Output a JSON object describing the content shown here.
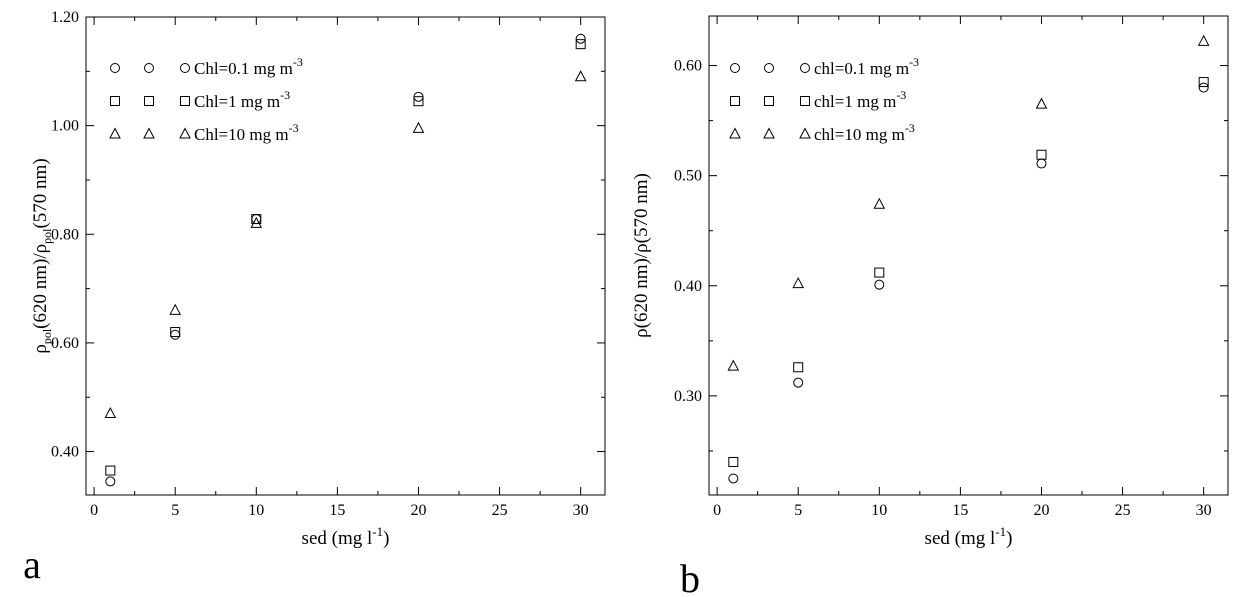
{
  "chart_data": [
    {
      "panel": "a",
      "type": "scatter",
      "xlabel": "sed (mg l",
      "xlabel_sup": "-1",
      "xlabel_end": ")",
      "ylabel_parts": [
        "ρ",
        "pol",
        "(620 nm)/ρ",
        "pol",
        "(570 nm)"
      ],
      "xlim": [
        -0.5,
        31.5
      ],
      "ylim": [
        0.32,
        1.2
      ],
      "x_ticks": [
        0,
        5,
        10,
        15,
        20,
        25,
        30
      ],
      "x_tick_labels": [
        "0",
        "5",
        "10",
        "15",
        "20",
        "25",
        "30"
      ],
      "y_ticks": [
        0.4,
        0.6,
        0.8,
        1.0,
        1.2
      ],
      "y_tick_labels": [
        "0.40",
        "0.60",
        "0.80",
        "1.00",
        "1.20"
      ],
      "legend_position": "top-left",
      "series": [
        {
          "name": "Chl=0.1 mg m",
          "name_sup": "-3",
          "marker": "circle",
          "x": [
            1,
            5,
            10,
            20,
            30
          ],
          "y": [
            0.345,
            0.615,
            0.828,
            1.053,
            1.16
          ]
        },
        {
          "name": "Chl=1 mg m",
          "name_sup": "-3",
          "marker": "square",
          "x": [
            1,
            5,
            10,
            20,
            30
          ],
          "y": [
            0.365,
            0.62,
            0.828,
            1.045,
            1.15
          ]
        },
        {
          "name": "Chl=10 mg m",
          "name_sup": "-3",
          "marker": "triangle",
          "x": [
            1,
            5,
            10,
            20,
            30
          ],
          "y": [
            0.47,
            0.66,
            0.82,
            0.995,
            1.09
          ]
        }
      ]
    },
    {
      "panel": "b",
      "type": "scatter",
      "xlabel": "sed (mg l",
      "xlabel_sup": "-1",
      "xlabel_end": ")",
      "ylabel_parts": [
        "ρ(620 nm)/ρ(570 nm)"
      ],
      "xlim": [
        -0.5,
        31.5
      ],
      "ylim": [
        0.21,
        0.645
      ],
      "x_ticks": [
        0,
        5,
        10,
        15,
        20,
        25,
        30
      ],
      "x_tick_labels": [
        "0",
        "5",
        "10",
        "15",
        "20",
        "25",
        "30"
      ],
      "y_ticks": [
        0.3,
        0.4,
        0.5,
        0.6
      ],
      "y_tick_labels": [
        "0.30",
        "0.40",
        "0.50",
        "0.60"
      ],
      "legend_position": "top-left",
      "series": [
        {
          "name": "chl=0.1 mg m",
          "name_sup": "-3",
          "marker": "circle",
          "x": [
            1,
            5,
            10,
            20,
            30
          ],
          "y": [
            0.225,
            0.312,
            0.401,
            0.511,
            0.58
          ]
        },
        {
          "name": "chl=1 mg m",
          "name_sup": "-3",
          "marker": "square",
          "x": [
            1,
            5,
            10,
            20,
            30
          ],
          "y": [
            0.24,
            0.326,
            0.412,
            0.519,
            0.585
          ]
        },
        {
          "name": "chl=10 mg m",
          "name_sup": "-3",
          "marker": "triangle",
          "x": [
            1,
            5,
            10,
            20,
            30
          ],
          "y": [
            0.327,
            0.402,
            0.474,
            0.565,
            0.622
          ]
        }
      ]
    }
  ]
}
